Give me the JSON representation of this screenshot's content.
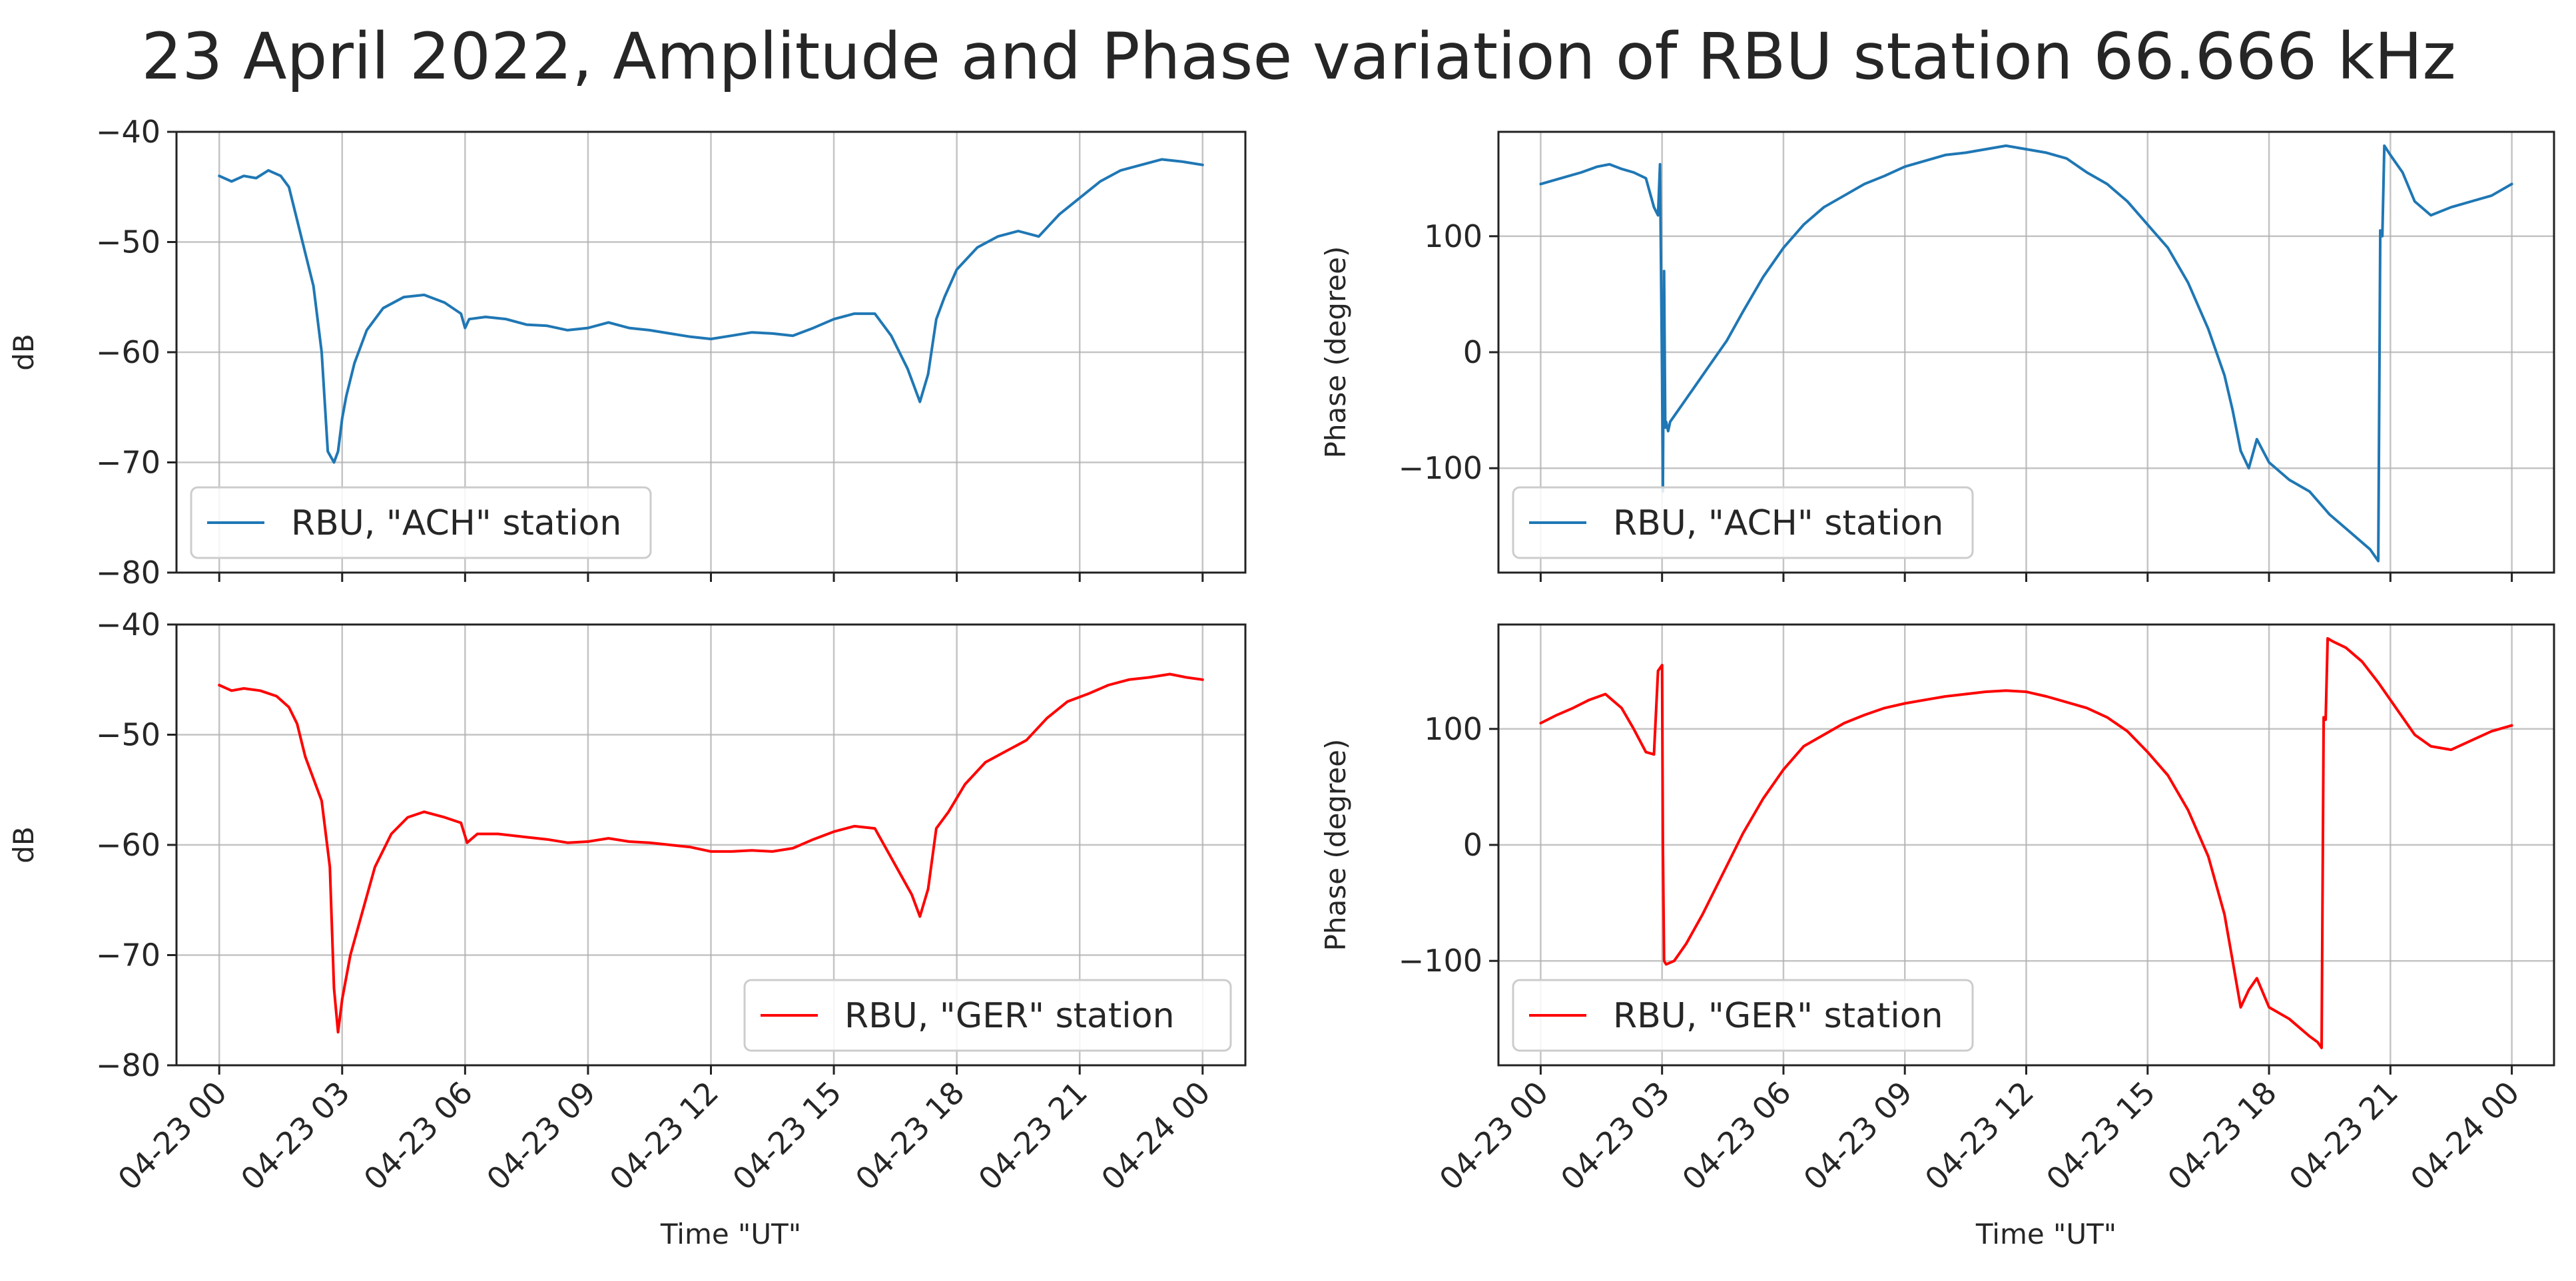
{
  "figure_title": "23 April 2022, Amplitude and Phase variation of RBU station  66.666 kHz",
  "colors": {
    "ach": "#1f77b4",
    "ger": "#ff0000"
  },
  "chart_data": [
    {
      "id": "amp-ach",
      "type": "line",
      "xlabel": "",
      "ylabel": "dB",
      "xlim": [
        0,
        24
      ],
      "ylim": [
        -80,
        -40
      ],
      "yticks": [
        -40,
        -50,
        -60,
        -70,
        -80
      ],
      "xticks": [
        0,
        3,
        6,
        9,
        12,
        15,
        18,
        21,
        24
      ],
      "xticklabels": [],
      "legend": "lower-left",
      "series": [
        {
          "name": "RBU, \"ACH\" station",
          "color": "#1f77b4",
          "x": [
            0,
            0.3,
            0.6,
            0.9,
            1.2,
            1.5,
            1.7,
            1.9,
            2.1,
            2.3,
            2.5,
            2.65,
            2.8,
            2.9,
            3.0,
            3.1,
            3.3,
            3.6,
            4.0,
            4.5,
            5.0,
            5.5,
            5.9,
            6.0,
            6.1,
            6.5,
            7.0,
            7.5,
            8.0,
            8.5,
            9.0,
            9.5,
            10,
            10.5,
            11,
            11.5,
            12,
            12.5,
            13,
            13.5,
            14,
            14.5,
            15,
            15.5,
            16,
            16.4,
            16.8,
            17.1,
            17.3,
            17.5,
            17.7,
            18.0,
            18.5,
            19,
            19.5,
            20,
            20.5,
            21,
            21.5,
            22,
            22.5,
            23,
            23.5,
            24
          ],
          "y": [
            -44,
            -44.5,
            -44,
            -44.2,
            -43.5,
            -44,
            -45,
            -48,
            -51,
            -54,
            -60,
            -69,
            -70,
            -69,
            -66,
            -64,
            -61,
            -58,
            -56,
            -55,
            -54.8,
            -55.5,
            -56.5,
            -57.8,
            -57,
            -56.8,
            -57,
            -57.5,
            -57.6,
            -58,
            -57.8,
            -57.3,
            -57.8,
            -58,
            -58.3,
            -58.6,
            -58.8,
            -58.5,
            -58.2,
            -58.3,
            -58.5,
            -57.8,
            -57,
            -56.5,
            -56.5,
            -58.5,
            -61.5,
            -64.5,
            -62,
            -57,
            -55,
            -52.5,
            -50.5,
            -49.5,
            -49,
            -49.5,
            -47.5,
            -46,
            -44.5,
            -43.5,
            -43,
            -42.5,
            -42.7,
            -43
          ]
        }
      ]
    },
    {
      "id": "phase-ach",
      "type": "line",
      "xlabel": "",
      "ylabel": "Phase (degree)",
      "xlim": [
        0,
        24
      ],
      "ylim": [
        -190,
        190
      ],
      "yticks": [
        100,
        0,
        -100
      ],
      "xticks": [
        0,
        3,
        6,
        9,
        12,
        15,
        18,
        21,
        24
      ],
      "xticklabels": [],
      "legend": "lower-left",
      "series": [
        {
          "name": "RBU, \"ACH\" station",
          "color": "#1f77b4",
          "x": [
            0,
            0.5,
            1.0,
            1.4,
            1.7,
            2.0,
            2.3,
            2.6,
            2.8,
            2.9,
            2.95,
            3.0,
            3.02,
            3.05,
            3.08,
            3.1,
            3.15,
            3.2,
            3.3,
            3.5,
            3.8,
            4.2,
            4.6,
            5.0,
            5.5,
            6.0,
            6.5,
            7.0,
            7.5,
            8.0,
            8.5,
            9.0,
            9.5,
            10,
            10.5,
            11,
            11.5,
            12,
            12.5,
            13,
            13.5,
            14,
            14.5,
            15,
            15.5,
            16,
            16.5,
            16.9,
            17.1,
            17.3,
            17.5,
            17.7,
            18.0,
            18.5,
            19,
            19.5,
            20,
            20.5,
            20.7,
            20.75,
            20.8,
            20.85,
            21.0,
            21.3,
            21.6,
            22,
            22.5,
            23,
            23.5,
            24
          ],
          "y": [
            145,
            150,
            155,
            160,
            162,
            158,
            155,
            150,
            125,
            118,
            162,
            -20,
            -120,
            70,
            -65,
            -60,
            -68,
            -60,
            -55,
            -45,
            -30,
            -10,
            10,
            35,
            65,
            90,
            110,
            125,
            135,
            145,
            152,
            160,
            165,
            170,
            172,
            175,
            178,
            175,
            172,
            167,
            155,
            145,
            130,
            110,
            90,
            60,
            20,
            -20,
            -50,
            -85,
            -100,
            -75,
            -95,
            -110,
            -120,
            -140,
            -155,
            -170,
            -180,
            105,
            100,
            178,
            170,
            155,
            130,
            118,
            125,
            130,
            135,
            145
          ]
        }
      ]
    },
    {
      "id": "amp-ger",
      "type": "line",
      "xlabel": "Time \"UT\"",
      "ylabel": "dB",
      "xlim": [
        0,
        24
      ],
      "ylim": [
        -80,
        -40
      ],
      "yticks": [
        -40,
        -50,
        -60,
        -70,
        -80
      ],
      "xticks": [
        0,
        3,
        6,
        9,
        12,
        15,
        18,
        21,
        24
      ],
      "xticklabels": [
        "04-23 00",
        "04-23 03",
        "04-23 06",
        "04-23 09",
        "04-23 12",
        "04-23 15",
        "04-23 18",
        "04-23 21",
        "04-24 00"
      ],
      "legend": "lower-right",
      "series": [
        {
          "name": "RBU, \"GER\" station",
          "color": "#ff0000",
          "x": [
            0,
            0.3,
            0.6,
            1.0,
            1.4,
            1.7,
            1.9,
            2.1,
            2.3,
            2.5,
            2.7,
            2.8,
            2.9,
            3.0,
            3.2,
            3.5,
            3.8,
            4.2,
            4.6,
            5.0,
            5.5,
            5.9,
            6.05,
            6.3,
            6.8,
            7.5,
            8,
            8.5,
            9,
            9.5,
            10,
            10.5,
            11,
            11.5,
            12,
            12.5,
            13,
            13.5,
            14,
            14.5,
            15,
            15.5,
            16,
            16.3,
            16.6,
            16.9,
            17.1,
            17.3,
            17.5,
            17.8,
            18.2,
            18.7,
            19.2,
            19.7,
            20.2,
            20.7,
            21.2,
            21.7,
            22.2,
            22.7,
            23.2,
            23.6,
            24
          ],
          "y": [
            -45.5,
            -46,
            -45.8,
            -46,
            -46.5,
            -47.5,
            -49,
            -52,
            -54,
            -56,
            -62,
            -73,
            -77,
            -74,
            -70,
            -66,
            -62,
            -59,
            -57.5,
            -57,
            -57.5,
            -58,
            -59.8,
            -59,
            -59,
            -59.3,
            -59.5,
            -59.8,
            -59.7,
            -59.4,
            -59.7,
            -59.8,
            -60,
            -60.2,
            -60.6,
            -60.6,
            -60.5,
            -60.6,
            -60.3,
            -59.5,
            -58.8,
            -58.3,
            -58.5,
            -60.5,
            -62.5,
            -64.5,
            -66.5,
            -64,
            -58.5,
            -57,
            -54.5,
            -52.5,
            -51.5,
            -50.5,
            -48.5,
            -47,
            -46.3,
            -45.5,
            -45,
            -44.8,
            -44.5,
            -44.8,
            -45
          ]
        }
      ]
    },
    {
      "id": "phase-ger",
      "type": "line",
      "xlabel": "Time \"UT\"",
      "ylabel": "Phase (degree)",
      "xlim": [
        0,
        24
      ],
      "ylim": [
        -190,
        190
      ],
      "yticks": [
        100,
        0,
        -100
      ],
      "xticks": [
        0,
        3,
        6,
        9,
        12,
        15,
        18,
        21,
        24
      ],
      "xticklabels": [
        "04-23 00",
        "04-23 03",
        "04-23 06",
        "04-23 09",
        "04-23 12",
        "04-23 15",
        "04-23 18",
        "04-23 21",
        "04-24 00"
      ],
      "legend": "lower-left",
      "series": [
        {
          "name": "RBU, \"GER\" station",
          "color": "#ff0000",
          "x": [
            0,
            0.4,
            0.8,
            1.2,
            1.6,
            2.0,
            2.3,
            2.6,
            2.8,
            2.9,
            3.0,
            3.02,
            3.05,
            3.1,
            3.3,
            3.6,
            4.0,
            4.5,
            5.0,
            5.5,
            6.0,
            6.5,
            7.0,
            7.5,
            8.0,
            8.5,
            9.0,
            9.5,
            10,
            10.5,
            11,
            11.5,
            12,
            12.5,
            13,
            13.5,
            14,
            14.5,
            15,
            15.5,
            16,
            16.5,
            16.9,
            17.1,
            17.3,
            17.5,
            17.7,
            18.0,
            18.5,
            19,
            19.2,
            19.3,
            19.35,
            19.4,
            19.45,
            19.6,
            19.9,
            20.3,
            20.7,
            21.2,
            21.6,
            22,
            22.5,
            23,
            23.5,
            24
          ],
          "y": [
            105,
            112,
            118,
            125,
            130,
            118,
            100,
            80,
            78,
            150,
            155,
            0,
            -100,
            -103,
            -100,
            -85,
            -60,
            -25,
            10,
            40,
            65,
            85,
            95,
            105,
            112,
            118,
            122,
            125,
            128,
            130,
            132,
            133,
            132,
            128,
            123,
            118,
            110,
            98,
            80,
            60,
            30,
            -10,
            -60,
            -100,
            -140,
            -125,
            -115,
            -140,
            -150,
            -165,
            -170,
            -175,
            110,
            108,
            178,
            175,
            170,
            158,
            140,
            115,
            95,
            85,
            82,
            90,
            98,
            103
          ]
        }
      ]
    }
  ]
}
